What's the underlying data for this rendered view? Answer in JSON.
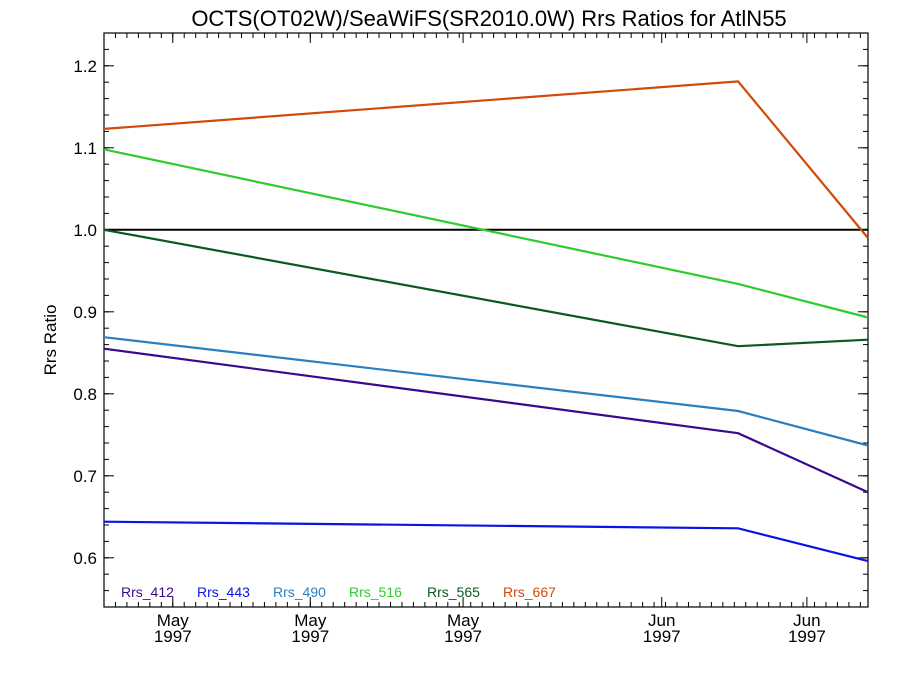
{
  "chart_data": {
    "type": "line",
    "title": "OCTS(OT02W)/SeaWiFS(SR2010.0W)  Rrs Ratios for AtlN55",
    "xlabel": "",
    "ylabel": "Rrs Ratio",
    "ylim": [
      0.54,
      1.24
    ],
    "xlim": [
      0,
      100
    ],
    "yticks": [
      0.6,
      0.7,
      0.8,
      0.9,
      1.0,
      1.1,
      1.2
    ],
    "yticklabels": [
      "0.6",
      "0.7",
      "0.8",
      "0.9",
      "1.0",
      "1.1",
      "1.2"
    ],
    "xticks": [
      {
        "x": 9,
        "month": "May",
        "year": "1997"
      },
      {
        "x": 27,
        "month": "May",
        "year": "1997"
      },
      {
        "x": 47,
        "month": "May",
        "year": "1997"
      },
      {
        "x": 73,
        "month": "Jun",
        "year": "1997"
      },
      {
        "x": 92,
        "month": "Jun",
        "year": "1997"
      }
    ],
    "grid": false,
    "legend_position": "bottom-left",
    "reference_line": {
      "y": 1.0,
      "color": "#000000"
    },
    "x": [
      0,
      83,
      100
    ],
    "series": [
      {
        "name": "Rrs_412",
        "color": "#3a0a8c",
        "values": [
          0.855,
          0.752,
          0.68
        ]
      },
      {
        "name": "Rrs_443",
        "color": "#0a14e6",
        "values": [
          0.644,
          0.636,
          0.596
        ]
      },
      {
        "name": "Rrs_490",
        "color": "#2a7fc0",
        "values": [
          0.869,
          0.779,
          0.737
        ]
      },
      {
        "name": "Rrs_516",
        "color": "#2ecc2e",
        "values": [
          1.098,
          0.934,
          0.893
        ]
      },
      {
        "name": "Rrs_565",
        "color": "#0a5a1e",
        "values": [
          1.0,
          0.858,
          0.866
        ]
      },
      {
        "name": "Rrs_667",
        "color": "#d24a0a",
        "values": [
          1.123,
          1.181,
          0.99
        ]
      }
    ]
  }
}
